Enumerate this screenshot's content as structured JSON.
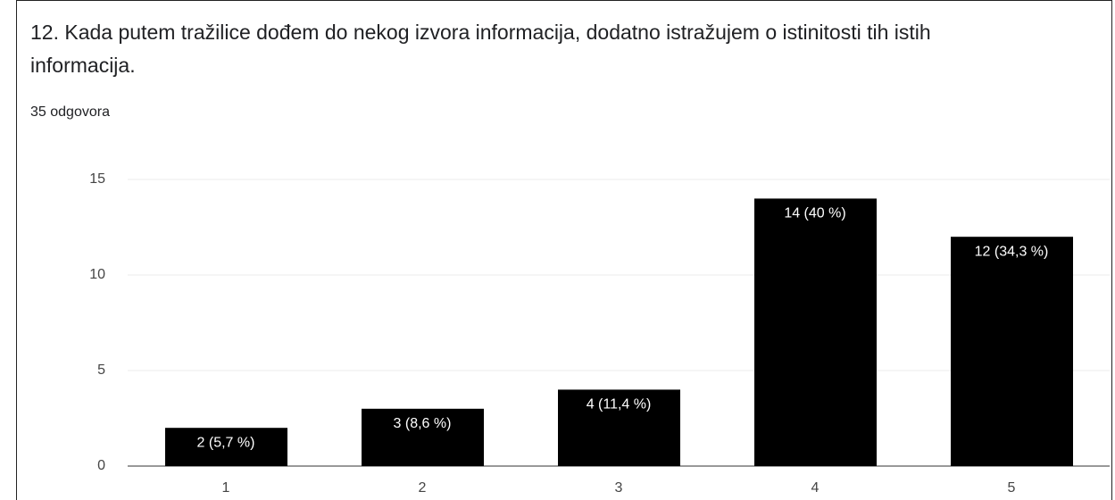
{
  "chart_data": {
    "type": "bar",
    "title": "12. Kada putem tražilice dođem do nekog izvora informacija, dodatno istražujem o istinitosti tih istih informacija.",
    "subtitle": "35 odgovora",
    "categories": [
      "1",
      "2",
      "3",
      "4",
      "5"
    ],
    "values": [
      2,
      3,
      4,
      14,
      12
    ],
    "value_labels": [
      "2 (5,7 %)",
      "3 (8,6 %)",
      "4 (11,4 %)",
      "14 (40 %)",
      "12 (34,3 %)"
    ],
    "color": "#000000",
    "ylim": [
      0,
      15
    ],
    "yticks": [
      0,
      5,
      10,
      15
    ],
    "grid": true
  }
}
